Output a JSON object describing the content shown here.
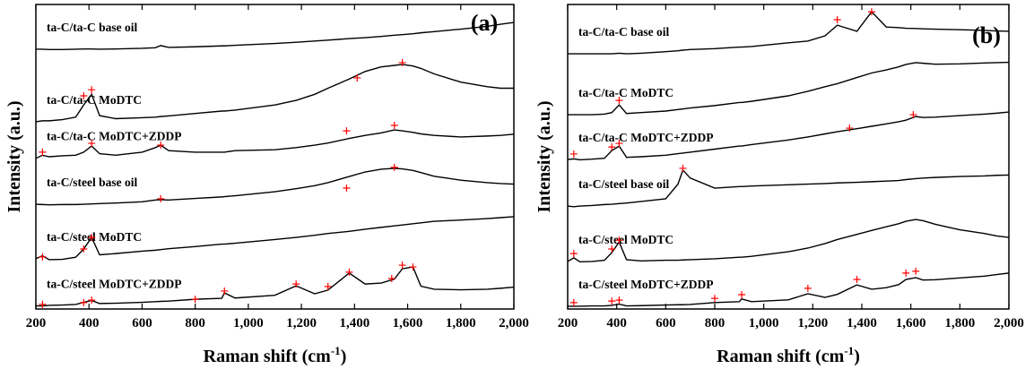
{
  "chart_data": [
    {
      "type": "line",
      "panel_label": "(a)",
      "y_label": "Intensity (a.u.)",
      "x_label": [
        "Raman shift (cm",
        "-1",
        ")"
      ],
      "xlim": [
        200,
        2000
      ],
      "ylim": [
        0,
        100
      ],
      "xticks": [
        200,
        400,
        600,
        800,
        {
          "value": 1000,
          "label": "1,000"
        },
        {
          "value": 1200,
          "label": "1,200"
        },
        {
          "value": 1400,
          "label": "1,400"
        },
        {
          "value": 1600,
          "label": "1,600"
        },
        {
          "value": 1800,
          "label": "1,800"
        },
        {
          "value": 2000,
          "label": "2,000"
        }
      ],
      "marker_color": "#ff0000",
      "x": [
        200,
        225,
        250,
        300,
        350,
        380,
        410,
        440,
        500,
        600,
        650,
        670,
        700,
        800,
        900,
        910,
        950,
        1100,
        1180,
        1250,
        1300,
        1380,
        1440,
        1500,
        1550,
        1580,
        1620,
        1650,
        1700,
        1800,
        1900,
        1950,
        2000
      ],
      "series": [
        {
          "name": "ta-C/ta-C base oil",
          "color": "#000000",
          "values": [
            85.3,
            85.3,
            85.2,
            85.2,
            85.3,
            85.4,
            85.4,
            85.3,
            85.4,
            85.6,
            85.8,
            86.5,
            85.9,
            86.1,
            86.4,
            86.4,
            86.6,
            87.2,
            87.6,
            88,
            88.3,
            88.8,
            89.1,
            89.5,
            89.9,
            90.1,
            90.4,
            90.7,
            91.1,
            91.9,
            92.8,
            93.5,
            94.1
          ],
          "markers": {
            "x": [],
            "values": []
          }
        },
        {
          "name": "ta-C/ta-C MoDTC",
          "color": "#000000",
          "values": [
            61.5,
            61.8,
            61.8,
            62.2,
            63,
            67,
            70.5,
            63.5,
            62.5,
            62.8,
            63,
            63.2,
            63.4,
            64.2,
            65,
            65,
            65.3,
            67,
            68.5,
            70.5,
            72.5,
            75.5,
            78,
            79.5,
            80,
            80.3,
            79.8,
            79,
            77.2,
            74.5,
            73,
            72.5,
            72.5
          ],
          "markers": {
            "x": [
              380,
              410,
              1410,
              1580
            ],
            "values": [
              70,
              72,
              75.9,
              80.9
            ]
          }
        },
        {
          "name": "ta-C/ta-C MoDTC+ZDDP",
          "color": "#000000",
          "values": [
            49.5,
            50.5,
            50,
            50.3,
            50.5,
            51.5,
            53.5,
            51,
            50.5,
            51.5,
            53,
            53.8,
            52,
            51.5,
            51.5,
            51.5,
            52,
            52.3,
            53,
            53.8,
            54.5,
            56,
            57,
            57.8,
            58.8,
            58.5,
            58,
            57.5,
            57,
            56.5,
            56.8,
            57,
            57.4
          ],
          "markers": {
            "x": [
              225,
              410,
              670,
              1370,
              1550
            ],
            "values": [
              51.5,
              54.4,
              53.8,
              58.5,
              60.3
            ]
          }
        },
        {
          "name": "ta-C/steel base oil",
          "color": "#000000",
          "values": [
            34.4,
            34.3,
            34.2,
            34.3,
            34.3,
            34.4,
            34.5,
            34.6,
            34.8,
            35.2,
            35.8,
            35.9,
            35.8,
            36.3,
            36.8,
            36.9,
            37.2,
            38.5,
            39.5,
            40.5,
            41.5,
            43.5,
            45,
            45.9,
            46.2,
            46,
            45.5,
            44.8,
            43.6,
            42.3,
            41.5,
            41.2,
            41
          ],
          "markers": {
            "x": [
              670,
              1370,
              1550
            ],
            "values": [
              36.2,
              39.7,
              46.5
            ]
          }
        },
        {
          "name": "ta-C/steel MoDTC",
          "color": "#000000",
          "values": [
            16.5,
            17.5,
            16.2,
            16.3,
            17,
            19.7,
            23.5,
            17.8,
            18.2,
            19,
            19.3,
            19.5,
            19.8,
            20.5,
            21.3,
            21.3,
            21.6,
            22.8,
            23.5,
            24.2,
            24.8,
            25.5,
            26.2,
            26.8,
            27.3,
            27.6,
            28,
            28.3,
            28.8,
            29.2,
            29.7,
            30,
            30.3
          ],
          "markers": {
            "x": [
              225,
              380,
              410
            ],
            "values": [
              17.1,
              19.7,
              23.5
            ]
          }
        },
        {
          "name": "ta-C/steel MoDTC+ZDDP",
          "color": "#000000",
          "values": [
            1,
            1,
            1.2,
            1.3,
            1.5,
            2.2,
            2.8,
            1.8,
            1.9,
            2.2,
            2.4,
            2.5,
            2.6,
            3.2,
            3.5,
            5.3,
            3.6,
            4.5,
            7.6,
            5,
            6.2,
            11.8,
            8.2,
            8.5,
            9.8,
            13.2,
            13.8,
            7.5,
            6.5,
            6.3,
            6.5,
            6.8,
            7.2
          ],
          "markers": {
            "x": [
              225,
              380,
              410,
              800,
              910,
              1180,
              1300,
              1380,
              1540,
              1580,
              1620
            ],
            "values": [
              1.5,
              2.1,
              2.9,
              3.2,
              5.9,
              8.2,
              7.4,
              12.1,
              10,
              14.4,
              13.8
            ]
          }
        }
      ]
    },
    {
      "type": "line",
      "panel_label": "(b)",
      "y_label": "Intensity (a.u.)",
      "x_label": [
        "Raman shift (cm",
        "-1",
        ")"
      ],
      "xlim": [
        200,
        2000
      ],
      "ylim": [
        0,
        100
      ],
      "xticks": [
        200,
        400,
        600,
        800,
        {
          "value": 1000,
          "label": "1,000"
        },
        {
          "value": 1200,
          "label": "1,200"
        },
        {
          "value": 1400,
          "label": "1,400"
        },
        {
          "value": 1600,
          "label": "1,600"
        },
        {
          "value": 1800,
          "label": "1,800"
        },
        {
          "value": 2000,
          "label": "2,000"
        }
      ],
      "marker_color": "#ff0000",
      "x": [
        200,
        225,
        250,
        300,
        350,
        380,
        410,
        440,
        500,
        600,
        650,
        670,
        700,
        800,
        900,
        910,
        950,
        1100,
        1180,
        1250,
        1300,
        1380,
        1440,
        1500,
        1550,
        1580,
        1620,
        1650,
        1700,
        1800,
        1900,
        1950,
        2000
      ],
      "series": [
        {
          "name": "ta-C/ta-C base oil",
          "color": "#000000",
          "values": [
            83.8,
            83.8,
            83.8,
            83.8,
            83.8,
            83.8,
            84,
            83.8,
            84,
            84.5,
            84.8,
            85,
            85.2,
            85.5,
            86,
            86,
            86.2,
            87.4,
            88,
            89.7,
            93.2,
            91.2,
            97.6,
            92.6,
            92.4,
            92.2,
            92.1,
            92,
            91.9,
            91.7,
            91.5,
            91.3,
            91.2
          ],
          "markers": {
            "x": [
              1300,
              1440
            ],
            "values": [
              95,
              97.6
            ]
          }
        },
        {
          "name": "ta-C/ta-C MoDTC",
          "color": "#000000",
          "values": [
            63.8,
            63.8,
            63.8,
            63.8,
            64,
            64.5,
            67,
            64.2,
            64.5,
            65,
            65.5,
            65.7,
            66,
            66.8,
            67.8,
            67.8,
            68.2,
            70,
            71.5,
            73,
            74,
            76,
            77.5,
            78.5,
            79.5,
            80.3,
            80.9,
            80.7,
            80.4,
            80.5,
            80.8,
            80.9,
            81
          ],
          "markers": {
            "x": [
              410
            ],
            "values": [
              68.5
            ]
          }
        },
        {
          "name": "ta-C/ta-C MoDTC+ZDDP",
          "color": "#000000",
          "values": [
            49.1,
            49.3,
            49,
            49.2,
            49.5,
            52,
            53.5,
            49.8,
            50,
            50.5,
            51,
            51.2,
            51.5,
            52.5,
            53.5,
            53.5,
            54,
            55.5,
            56.5,
            57.5,
            58.2,
            59.2,
            60,
            60.8,
            61.5,
            62,
            63.2,
            62.9,
            63,
            63.5,
            64,
            64.3,
            64.7
          ],
          "markers": {
            "x": [
              225,
              380,
              410,
              1350,
              1610
            ],
            "values": [
              50.9,
              53.2,
              54.4,
              59.4,
              63.8
            ]
          }
        },
        {
          "name": "ta-C/steel base oil",
          "color": "#000000",
          "values": [
            33.8,
            33.6,
            33.8,
            34,
            34.3,
            34.4,
            34.6,
            34.8,
            35.3,
            36.2,
            41,
            45.6,
            43,
            39.7,
            40.2,
            40.2,
            40.4,
            40.8,
            41,
            41.2,
            41.4,
            41.6,
            41.8,
            42,
            42.2,
            42.5,
            42.8,
            43,
            43.2,
            43.5,
            43.7,
            43.9,
            44
          ],
          "markers": {
            "x": [
              670
            ],
            "values": [
              46.2
            ]
          }
        },
        {
          "name": "ta-C/steel MoDTC",
          "color": "#000000",
          "values": [
            15.6,
            16.8,
            15.5,
            15.6,
            16,
            18.5,
            22,
            16.2,
            15.8,
            16,
            16,
            16.1,
            16.2,
            16.5,
            17,
            17,
            17.3,
            18.8,
            20,
            21.5,
            22.8,
            24.5,
            25.8,
            27,
            28,
            28.8,
            29.4,
            29,
            27.8,
            26,
            24.8,
            24,
            23.5
          ],
          "markers": {
            "x": [
              225,
              380,
              410
            ],
            "values": [
              18.2,
              19.7,
              22.6
            ]
          }
        },
        {
          "name": "ta-C/steel MoDTC+ZDDP",
          "color": "#000000",
          "values": [
            0.9,
            0.9,
            0.9,
            1,
            1,
            1.2,
            1.6,
            1,
            1.1,
            1.3,
            1.4,
            1.4,
            1.5,
            2.1,
            2.4,
            3.3,
            2.4,
            3,
            5,
            3.8,
            4.8,
            7.9,
            6.5,
            7,
            8,
            9.7,
            10.3,
            9.5,
            9.6,
            10.2,
            10.8,
            11.3,
            11.8
          ],
          "markers": {
            "x": [
              225,
              380,
              410,
              800,
              910,
              1180,
              1380,
              1580,
              1620
            ],
            "values": [
              2.1,
              2.6,
              2.9,
              3.5,
              4.7,
              6.8,
              9.7,
              11.8,
              12.4
            ]
          }
        }
      ]
    }
  ]
}
